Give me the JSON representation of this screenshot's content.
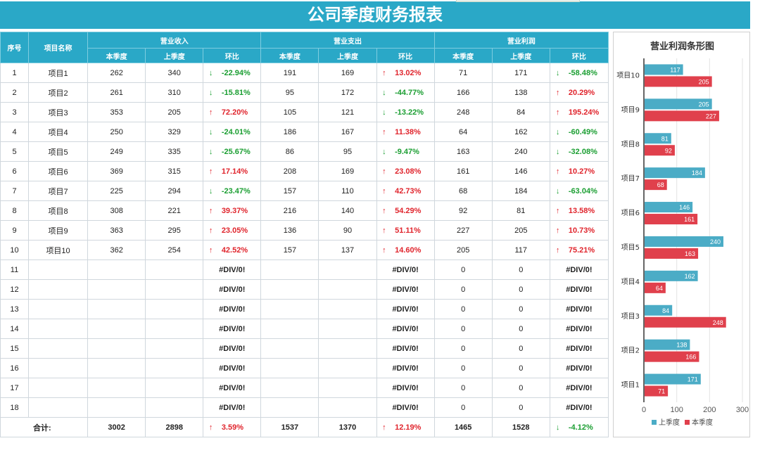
{
  "title": "公司季度财务报表",
  "headers": {
    "seq": "序号",
    "name": "项目名称",
    "groups": [
      "营业收入",
      "营业支出",
      "营业利润"
    ],
    "sub": [
      "本季度",
      "上季度",
      "环比"
    ]
  },
  "rows": [
    {
      "seq": "1",
      "name": "项目1",
      "rev": [
        "262",
        "340",
        "-22.94%"
      ],
      "rev_dir": "down",
      "exp": [
        "191",
        "169",
        "13.02%"
      ],
      "exp_dir": "up",
      "pro": [
        "71",
        "171",
        "-58.48%"
      ],
      "pro_dir": "down"
    },
    {
      "seq": "2",
      "name": "项目2",
      "rev": [
        "261",
        "310",
        "-15.81%"
      ],
      "rev_dir": "down",
      "exp": [
        "95",
        "172",
        "-44.77%"
      ],
      "exp_dir": "down",
      "pro": [
        "166",
        "138",
        "20.29%"
      ],
      "pro_dir": "up"
    },
    {
      "seq": "3",
      "name": "项目3",
      "rev": [
        "353",
        "205",
        "72.20%"
      ],
      "rev_dir": "up",
      "exp": [
        "105",
        "121",
        "-13.22%"
      ],
      "exp_dir": "down",
      "pro": [
        "248",
        "84",
        "195.24%"
      ],
      "pro_dir": "up"
    },
    {
      "seq": "4",
      "name": "项目4",
      "rev": [
        "250",
        "329",
        "-24.01%"
      ],
      "rev_dir": "down",
      "exp": [
        "186",
        "167",
        "11.38%"
      ],
      "exp_dir": "up",
      "pro": [
        "64",
        "162",
        "-60.49%"
      ],
      "pro_dir": "down"
    },
    {
      "seq": "5",
      "name": "项目5",
      "rev": [
        "249",
        "335",
        "-25.67%"
      ],
      "rev_dir": "down",
      "exp": [
        "86",
        "95",
        "-9.47%"
      ],
      "exp_dir": "down",
      "pro": [
        "163",
        "240",
        "-32.08%"
      ],
      "pro_dir": "down"
    },
    {
      "seq": "6",
      "name": "项目6",
      "rev": [
        "369",
        "315",
        "17.14%"
      ],
      "rev_dir": "up",
      "exp": [
        "208",
        "169",
        "23.08%"
      ],
      "exp_dir": "up",
      "pro": [
        "161",
        "146",
        "10.27%"
      ],
      "pro_dir": "up"
    },
    {
      "seq": "7",
      "name": "项目7",
      "rev": [
        "225",
        "294",
        "-23.47%"
      ],
      "rev_dir": "down",
      "exp": [
        "157",
        "110",
        "42.73%"
      ],
      "exp_dir": "up",
      "pro": [
        "68",
        "184",
        "-63.04%"
      ],
      "pro_dir": "down"
    },
    {
      "seq": "8",
      "name": "项目8",
      "rev": [
        "308",
        "221",
        "39.37%"
      ],
      "rev_dir": "up",
      "exp": [
        "216",
        "140",
        "54.29%"
      ],
      "exp_dir": "up",
      "pro": [
        "92",
        "81",
        "13.58%"
      ],
      "pro_dir": "up"
    },
    {
      "seq": "9",
      "name": "项目9",
      "rev": [
        "363",
        "295",
        "23.05%"
      ],
      "rev_dir": "up",
      "exp": [
        "136",
        "90",
        "51.11%"
      ],
      "exp_dir": "up",
      "pro": [
        "227",
        "205",
        "10.73%"
      ],
      "pro_dir": "up"
    },
    {
      "seq": "10",
      "name": "项目10",
      "rev": [
        "362",
        "254",
        "42.52%"
      ],
      "rev_dir": "up",
      "exp": [
        "157",
        "137",
        "14.60%"
      ],
      "exp_dir": "up",
      "pro": [
        "205",
        "117",
        "75.21%"
      ],
      "pro_dir": "up"
    },
    {
      "seq": "11",
      "name": "",
      "rev": [
        "",
        "",
        "#DIV/0!"
      ],
      "rev_dir": "",
      "exp": [
        "",
        "",
        "#DIV/0!"
      ],
      "exp_dir": "",
      "pro": [
        "0",
        "0",
        "#DIV/0!"
      ],
      "pro_dir": ""
    },
    {
      "seq": "12",
      "name": "",
      "rev": [
        "",
        "",
        "#DIV/0!"
      ],
      "rev_dir": "",
      "exp": [
        "",
        "",
        "#DIV/0!"
      ],
      "exp_dir": "",
      "pro": [
        "0",
        "0",
        "#DIV/0!"
      ],
      "pro_dir": ""
    },
    {
      "seq": "13",
      "name": "",
      "rev": [
        "",
        "",
        "#DIV/0!"
      ],
      "rev_dir": "",
      "exp": [
        "",
        "",
        "#DIV/0!"
      ],
      "exp_dir": "",
      "pro": [
        "0",
        "0",
        "#DIV/0!"
      ],
      "pro_dir": ""
    },
    {
      "seq": "14",
      "name": "",
      "rev": [
        "",
        "",
        "#DIV/0!"
      ],
      "rev_dir": "",
      "exp": [
        "",
        "",
        "#DIV/0!"
      ],
      "exp_dir": "",
      "pro": [
        "0",
        "0",
        "#DIV/0!"
      ],
      "pro_dir": ""
    },
    {
      "seq": "15",
      "name": "",
      "rev": [
        "",
        "",
        "#DIV/0!"
      ],
      "rev_dir": "",
      "exp": [
        "",
        "",
        "#DIV/0!"
      ],
      "exp_dir": "",
      "pro": [
        "0",
        "0",
        "#DIV/0!"
      ],
      "pro_dir": ""
    },
    {
      "seq": "16",
      "name": "",
      "rev": [
        "",
        "",
        "#DIV/0!"
      ],
      "rev_dir": "",
      "exp": [
        "",
        "",
        "#DIV/0!"
      ],
      "exp_dir": "",
      "pro": [
        "0",
        "0",
        "#DIV/0!"
      ],
      "pro_dir": ""
    },
    {
      "seq": "17",
      "name": "",
      "rev": [
        "",
        "",
        "#DIV/0!"
      ],
      "rev_dir": "",
      "exp": [
        "",
        "",
        "#DIV/0!"
      ],
      "exp_dir": "",
      "pro": [
        "0",
        "0",
        "#DIV/0!"
      ],
      "pro_dir": ""
    },
    {
      "seq": "18",
      "name": "",
      "rev": [
        "",
        "",
        "#DIV/0!"
      ],
      "rev_dir": "",
      "exp": [
        "",
        "",
        "#DIV/0!"
      ],
      "exp_dir": "",
      "pro": [
        "0",
        "0",
        "#DIV/0!"
      ],
      "pro_dir": ""
    }
  ],
  "total": {
    "label": "合计:",
    "rev": [
      "3002",
      "2898",
      "3.59%"
    ],
    "rev_dir": "up",
    "exp": [
      "1537",
      "1370",
      "12.19%"
    ],
    "exp_dir": "up",
    "pro": [
      "1465",
      "1528",
      "-4.12%"
    ],
    "pro_dir": "down"
  },
  "arrows": {
    "up": "↑",
    "down": "↓"
  },
  "colors": {
    "header": "#2aa8c7",
    "up": "#e0242c",
    "down": "#1a9e31",
    "last_quarter": "#4bacc6",
    "this_quarter": "#e0404c"
  },
  "chart_data": {
    "type": "bar",
    "orientation": "horizontal",
    "title": "营业利润条形图",
    "categories": [
      "项目1",
      "项目2",
      "项目3",
      "项目4",
      "项目5",
      "项目6",
      "项目7",
      "项目8",
      "项目9",
      "项目10"
    ],
    "series": [
      {
        "name": "上季度",
        "values": [
          171,
          138,
          84,
          162,
          240,
          146,
          184,
          81,
          205,
          117
        ]
      },
      {
        "name": "本季度",
        "values": [
          71,
          166,
          248,
          64,
          163,
          161,
          68,
          92,
          227,
          205
        ]
      }
    ],
    "xlim": [
      0,
      300
    ],
    "xticks": [
      "0",
      "100",
      "200",
      "300"
    ],
    "legend": "bottom",
    "grid": true
  }
}
